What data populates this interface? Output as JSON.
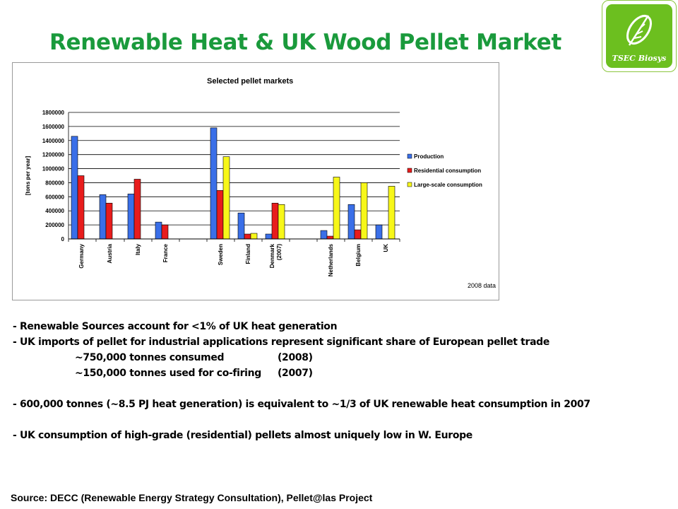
{
  "slide": {
    "title": "Renewable Heat & UK Wood Pellet Market",
    "logo_text": "TSEC Biosys",
    "logo_icon": "leaf-icon",
    "source": "Source: DECC (Renewable Energy Strategy Consultation), Pellet@las Project",
    "bullets": {
      "b1": "- Renewable Sources account for <1% of UK heat generation",
      "b2": "- UK imports of pellet for industrial applications represent significant share of European pellet trade",
      "b2a_value": "~750,000 tonnes consumed",
      "b2a_year": "(2008)",
      "b2b_value": "~150,000 tonnes used for co-firing",
      "b2b_year": "(2007)",
      "b3": "- 600,000 tonnes (~8.5 PJ heat generation) is equivalent to ~1/3 of UK renewable heat consumption in 2007",
      "b4": "- UK consumption of high-grade (residential) pellets almost uniquely low in W. Europe"
    }
  },
  "chart_data": {
    "type": "bar",
    "title": "Selected pellet markets",
    "ylabel": "[tons per year]",
    "note": "2008 data",
    "ylim": [
      0,
      1800000
    ],
    "yticks": [
      0,
      200000,
      400000,
      600000,
      800000,
      1000000,
      1200000,
      1400000,
      1600000,
      1800000
    ],
    "grid": true,
    "legend_position": "right",
    "categories": [
      [
        "Germany"
      ],
      [
        "Austria"
      ],
      [
        "Italy"
      ],
      [
        "France"
      ],
      [
        "Sweden"
      ],
      [
        "Finland"
      ],
      [
        "Denmark",
        "(2007)"
      ],
      [
        "Netherlands"
      ],
      [
        "Belgium"
      ],
      [
        "UK"
      ]
    ],
    "series": [
      {
        "name": "Production",
        "color": "#3a6fe8",
        "values": [
          1460000,
          630000,
          640000,
          240000,
          1580000,
          370000,
          70000,
          120000,
          490000,
          200000
        ]
      },
      {
        "name": "Residential consumption",
        "color": "#e81c1c",
        "values": [
          900000,
          510000,
          850000,
          200000,
          690000,
          70000,
          510000,
          40000,
          130000,
          0
        ]
      },
      {
        "name": "Large-scale consumption",
        "color": "#f7f719",
        "values": [
          0,
          0,
          0,
          0,
          1170000,
          80000,
          490000,
          880000,
          800000,
          750000
        ]
      }
    ]
  }
}
